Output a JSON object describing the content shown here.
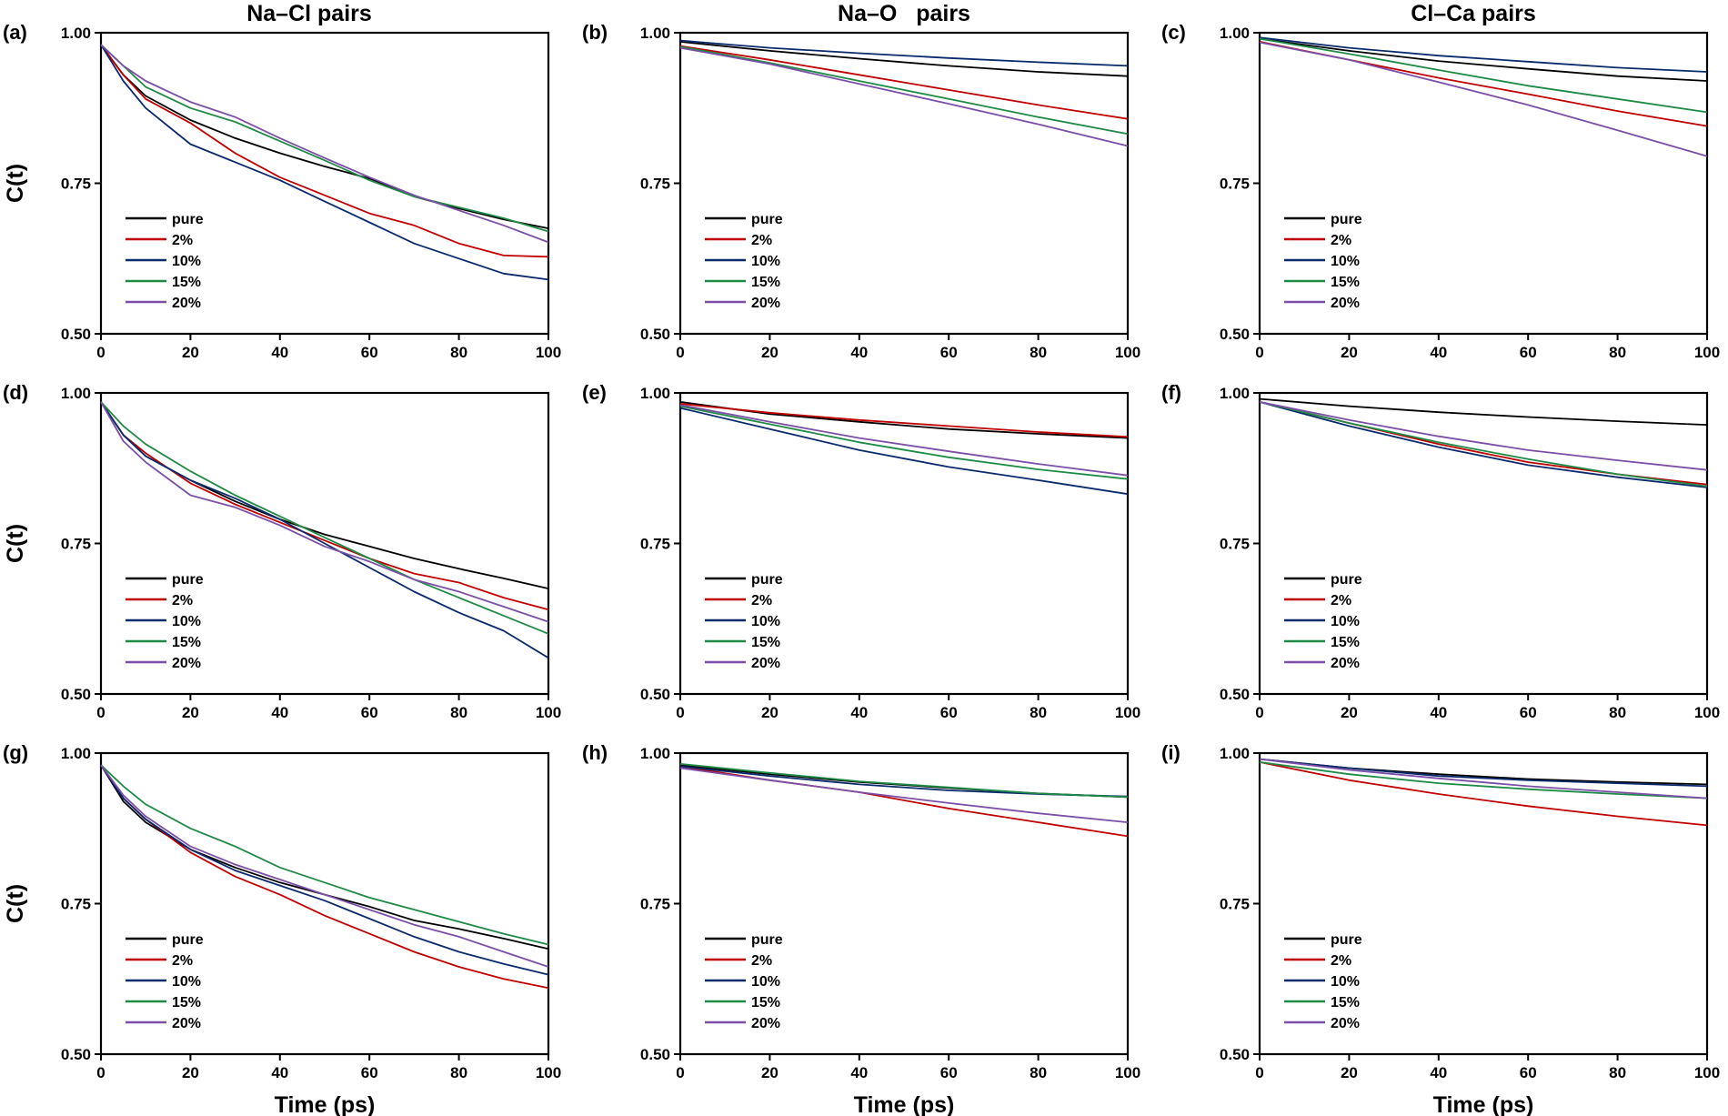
{
  "figure": {
    "column_titles": [
      "Na–Cl pairs",
      "Na–O   pairs",
      "Cl–Ca pairs"
    ],
    "x_axis_title": "Time (ps)",
    "y_axis_title": "C(t)",
    "colors": {
      "pure": "#000000",
      "2%": "#c00000",
      "10%": "#0a2a6e",
      "15%": "#1f8a45",
      "20%": "#7b4fa8"
    }
  },
  "chart_data": [
    {
      "type": "line",
      "panel": "(a)",
      "xlim": [
        0,
        100
      ],
      "ylim": [
        0.5,
        1.0
      ],
      "xticks": [
        0,
        20,
        40,
        60,
        80,
        100
      ],
      "yticks": [
        0.5,
        0.75,
        1.0
      ],
      "ytick_labels": [
        "0.50",
        "0.75",
        "1.00"
      ],
      "legend_position": "lower-left",
      "grid": false,
      "x": [
        0,
        5,
        10,
        20,
        30,
        40,
        50,
        60,
        70,
        80,
        90,
        100
      ],
      "series": [
        {
          "name": "pure",
          "values": [
            0.98,
            0.93,
            0.895,
            0.855,
            0.825,
            0.8,
            0.778,
            0.758,
            0.728,
            0.708,
            0.69,
            0.675
          ]
        },
        {
          "name": "2%",
          "values": [
            0.98,
            0.93,
            0.89,
            0.85,
            0.8,
            0.76,
            0.73,
            0.7,
            0.68,
            0.65,
            0.63,
            0.628
          ]
        },
        {
          "name": "10%",
          "values": [
            0.98,
            0.92,
            0.875,
            0.815,
            0.785,
            0.755,
            0.72,
            0.685,
            0.65,
            0.625,
            0.6,
            0.59
          ]
        },
        {
          "name": "15%",
          "values": [
            0.98,
            0.945,
            0.91,
            0.875,
            0.852,
            0.82,
            0.788,
            0.755,
            0.728,
            0.71,
            0.692,
            0.67
          ]
        },
        {
          "name": "20%",
          "values": [
            0.98,
            0.945,
            0.92,
            0.885,
            0.86,
            0.825,
            0.792,
            0.76,
            0.73,
            0.705,
            0.68,
            0.652
          ]
        }
      ]
    },
    {
      "type": "line",
      "panel": "(b)",
      "xlim": [
        0,
        100
      ],
      "ylim": [
        0.5,
        1.0
      ],
      "xticks": [
        0,
        20,
        40,
        60,
        80,
        100
      ],
      "yticks": [
        0.5,
        0.75,
        1.0
      ],
      "ytick_labels": [
        "0.50",
        "0.75",
        "1.00"
      ],
      "legend_position": "lower-left",
      "grid": false,
      "x": [
        0,
        20,
        40,
        60,
        80,
        100
      ],
      "series": [
        {
          "name": "pure",
          "values": [
            0.985,
            0.97,
            0.957,
            0.945,
            0.935,
            0.928
          ]
        },
        {
          "name": "2%",
          "values": [
            0.978,
            0.955,
            0.93,
            0.905,
            0.88,
            0.857
          ]
        },
        {
          "name": "10%",
          "values": [
            0.987,
            0.975,
            0.966,
            0.958,
            0.951,
            0.945
          ]
        },
        {
          "name": "15%",
          "values": [
            0.977,
            0.95,
            0.92,
            0.89,
            0.86,
            0.832
          ]
        },
        {
          "name": "20%",
          "values": [
            0.975,
            0.948,
            0.915,
            0.882,
            0.848,
            0.812
          ]
        }
      ]
    },
    {
      "type": "line",
      "panel": "(c)",
      "xlim": [
        0,
        100
      ],
      "ylim": [
        0.5,
        1.0
      ],
      "xticks": [
        0,
        20,
        40,
        60,
        80,
        100
      ],
      "yticks": [
        0.5,
        0.75,
        1.0
      ],
      "ytick_labels": [
        "0.50",
        "0.75",
        "1.00"
      ],
      "legend_position": "lower-left",
      "grid": false,
      "x": [
        0,
        20,
        40,
        60,
        80,
        100
      ],
      "series": [
        {
          "name": "pure",
          "values": [
            0.99,
            0.97,
            0.953,
            0.94,
            0.928,
            0.92
          ]
        },
        {
          "name": "2%",
          "values": [
            0.985,
            0.955,
            0.925,
            0.898,
            0.87,
            0.845
          ]
        },
        {
          "name": "10%",
          "values": [
            0.992,
            0.975,
            0.962,
            0.952,
            0.942,
            0.935
          ]
        },
        {
          "name": "15%",
          "values": [
            0.99,
            0.965,
            0.938,
            0.912,
            0.89,
            0.868
          ]
        },
        {
          "name": "20%",
          "values": [
            0.984,
            0.955,
            0.918,
            0.88,
            0.838,
            0.795
          ]
        }
      ]
    },
    {
      "type": "line",
      "panel": "(d)",
      "xlim": [
        0,
        100
      ],
      "ylim": [
        0.5,
        1.0
      ],
      "xticks": [
        0,
        20,
        40,
        60,
        80,
        100
      ],
      "yticks": [
        0.5,
        0.75,
        1.0
      ],
      "ytick_labels": [
        "0.50",
        "0.75",
        "1.00"
      ],
      "legend_position": "lower-left",
      "grid": false,
      "x": [
        0,
        5,
        10,
        20,
        30,
        40,
        50,
        60,
        70,
        80,
        90,
        100
      ],
      "series": [
        {
          "name": "pure",
          "values": [
            0.985,
            0.93,
            0.895,
            0.855,
            0.82,
            0.79,
            0.765,
            0.745,
            0.725,
            0.708,
            0.692,
            0.675
          ]
        },
        {
          "name": "2%",
          "values": [
            0.985,
            0.93,
            0.9,
            0.85,
            0.815,
            0.785,
            0.755,
            0.725,
            0.7,
            0.685,
            0.66,
            0.64
          ]
        },
        {
          "name": "10%",
          "values": [
            0.985,
            0.93,
            0.895,
            0.855,
            0.825,
            0.79,
            0.75,
            0.71,
            0.67,
            0.635,
            0.605,
            0.56
          ]
        },
        {
          "name": "15%",
          "values": [
            0.985,
            0.945,
            0.915,
            0.87,
            0.83,
            0.795,
            0.76,
            0.725,
            0.69,
            0.66,
            0.63,
            0.6
          ]
        },
        {
          "name": "20%",
          "values": [
            0.985,
            0.92,
            0.885,
            0.83,
            0.81,
            0.78,
            0.745,
            0.72,
            0.69,
            0.67,
            0.645,
            0.62
          ]
        }
      ]
    },
    {
      "type": "line",
      "panel": "(e)",
      "xlim": [
        0,
        100
      ],
      "ylim": [
        0.5,
        1.0
      ],
      "xticks": [
        0,
        20,
        40,
        60,
        80,
        100
      ],
      "yticks": [
        0.5,
        0.75,
        1.0
      ],
      "ytick_labels": [
        "0.50",
        "0.75",
        "1.00"
      ],
      "legend_position": "lower-left",
      "grid": false,
      "x": [
        0,
        20,
        40,
        60,
        80,
        100
      ],
      "series": [
        {
          "name": "pure",
          "values": [
            0.985,
            0.965,
            0.952,
            0.94,
            0.932,
            0.925
          ]
        },
        {
          "name": "2%",
          "values": [
            0.982,
            0.967,
            0.955,
            0.945,
            0.935,
            0.927
          ]
        },
        {
          "name": "10%",
          "values": [
            0.975,
            0.94,
            0.905,
            0.877,
            0.855,
            0.832
          ]
        },
        {
          "name": "15%",
          "values": [
            0.978,
            0.948,
            0.918,
            0.893,
            0.873,
            0.857
          ]
        },
        {
          "name": "20%",
          "values": [
            0.98,
            0.952,
            0.925,
            0.903,
            0.882,
            0.863
          ]
        }
      ]
    },
    {
      "type": "line",
      "panel": "(f)",
      "xlim": [
        0,
        100
      ],
      "ylim": [
        0.5,
        1.0
      ],
      "xticks": [
        0,
        20,
        40,
        60,
        80,
        100
      ],
      "yticks": [
        0.5,
        0.75,
        1.0
      ],
      "ytick_labels": [
        "0.50",
        "0.75",
        "1.00"
      ],
      "legend_position": "lower-left",
      "grid": false,
      "x": [
        0,
        20,
        40,
        60,
        80,
        100
      ],
      "series": [
        {
          "name": "pure",
          "values": [
            0.99,
            0.978,
            0.968,
            0.96,
            0.953,
            0.947
          ]
        },
        {
          "name": "2%",
          "values": [
            0.985,
            0.95,
            0.915,
            0.885,
            0.865,
            0.848
          ]
        },
        {
          "name": "10%",
          "values": [
            0.985,
            0.945,
            0.91,
            0.88,
            0.86,
            0.843
          ]
        },
        {
          "name": "15%",
          "values": [
            0.985,
            0.95,
            0.918,
            0.89,
            0.865,
            0.845
          ]
        },
        {
          "name": "20%",
          "values": [
            0.985,
            0.955,
            0.928,
            0.905,
            0.888,
            0.872
          ]
        }
      ]
    },
    {
      "type": "line",
      "panel": "(g)",
      "xlim": [
        0,
        100
      ],
      "ylim": [
        0.5,
        1.0
      ],
      "xticks": [
        0,
        20,
        40,
        60,
        80,
        100
      ],
      "yticks": [
        0.5,
        0.75,
        1.0
      ],
      "ytick_labels": [
        "0.50",
        "0.75",
        "1.00"
      ],
      "legend_position": "lower-left",
      "grid": false,
      "x": [
        0,
        5,
        10,
        20,
        30,
        40,
        50,
        60,
        70,
        80,
        90,
        100
      ],
      "series": [
        {
          "name": "pure",
          "values": [
            0.98,
            0.92,
            0.885,
            0.84,
            0.81,
            0.785,
            0.765,
            0.745,
            0.722,
            0.708,
            0.692,
            0.675
          ]
        },
        {
          "name": "2%",
          "values": [
            0.98,
            0.925,
            0.89,
            0.835,
            0.795,
            0.765,
            0.73,
            0.7,
            0.67,
            0.645,
            0.625,
            0.61
          ]
        },
        {
          "name": "10%",
          "values": [
            0.98,
            0.925,
            0.89,
            0.84,
            0.805,
            0.78,
            0.755,
            0.725,
            0.695,
            0.67,
            0.65,
            0.632
          ]
        },
        {
          "name": "15%",
          "values": [
            0.98,
            0.945,
            0.915,
            0.875,
            0.845,
            0.81,
            0.785,
            0.76,
            0.74,
            0.72,
            0.7,
            0.682
          ]
        },
        {
          "name": "20%",
          "values": [
            0.98,
            0.93,
            0.895,
            0.845,
            0.815,
            0.79,
            0.765,
            0.74,
            0.715,
            0.695,
            0.67,
            0.645
          ]
        }
      ]
    },
    {
      "type": "line",
      "panel": "(h)",
      "xlim": [
        0,
        100
      ],
      "ylim": [
        0.5,
        1.0
      ],
      "xticks": [
        0,
        20,
        40,
        60,
        80,
        100
      ],
      "yticks": [
        0.5,
        0.75,
        1.0
      ],
      "ytick_labels": [
        "0.50",
        "0.75",
        "1.00"
      ],
      "legend_position": "lower-left",
      "grid": false,
      "x": [
        0,
        20,
        40,
        60,
        80,
        100
      ],
      "series": [
        {
          "name": "pure",
          "values": [
            0.98,
            0.965,
            0.952,
            0.942,
            0.933,
            0.927
          ]
        },
        {
          "name": "2%",
          "values": [
            0.978,
            0.955,
            0.935,
            0.908,
            0.885,
            0.862
          ]
        },
        {
          "name": "10%",
          "values": [
            0.978,
            0.962,
            0.948,
            0.938,
            0.932,
            0.928
          ]
        },
        {
          "name": "15%",
          "values": [
            0.982,
            0.967,
            0.953,
            0.943,
            0.933,
            0.927
          ]
        },
        {
          "name": "20%",
          "values": [
            0.975,
            0.955,
            0.935,
            0.917,
            0.9,
            0.885
          ]
        }
      ]
    },
    {
      "type": "line",
      "panel": "(i)",
      "xlim": [
        0,
        100
      ],
      "ylim": [
        0.5,
        1.0
      ],
      "xticks": [
        0,
        20,
        40,
        60,
        80,
        100
      ],
      "yticks": [
        0.5,
        0.75,
        1.0
      ],
      "ytick_labels": [
        "0.50",
        "0.75",
        "1.00"
      ],
      "legend_position": "lower-left",
      "grid": false,
      "x": [
        0,
        20,
        40,
        60,
        80,
        100
      ],
      "series": [
        {
          "name": "pure",
          "values": [
            0.99,
            0.975,
            0.965,
            0.957,
            0.952,
            0.948
          ]
        },
        {
          "name": "2%",
          "values": [
            0.985,
            0.955,
            0.932,
            0.912,
            0.895,
            0.88
          ]
        },
        {
          "name": "10%",
          "values": [
            0.99,
            0.975,
            0.962,
            0.955,
            0.95,
            0.945
          ]
        },
        {
          "name": "15%",
          "values": [
            0.985,
            0.965,
            0.95,
            0.94,
            0.932,
            0.925
          ]
        },
        {
          "name": "20%",
          "values": [
            0.99,
            0.972,
            0.958,
            0.945,
            0.935,
            0.925
          ]
        }
      ]
    }
  ]
}
